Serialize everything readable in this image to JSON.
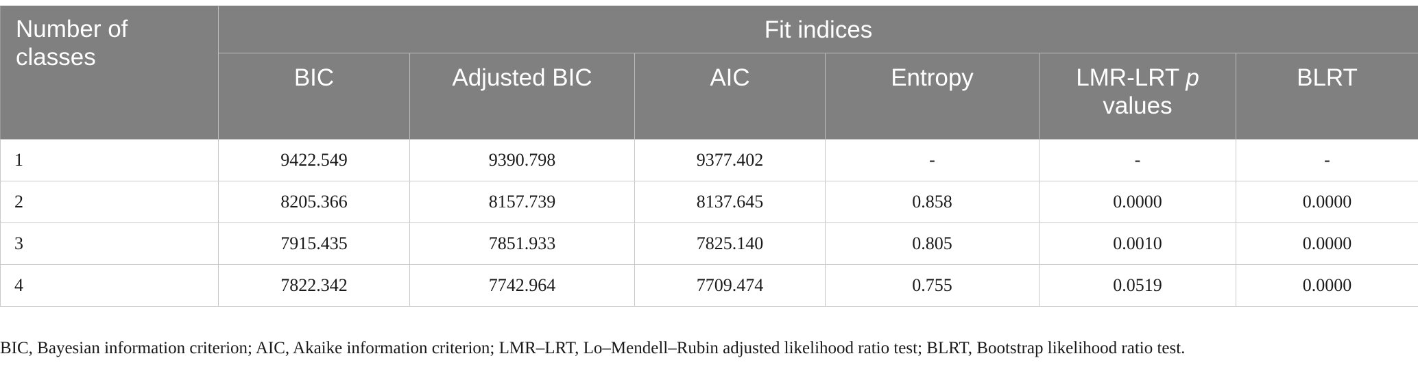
{
  "table": {
    "corner_header": "Number of classes",
    "group_header": "Fit indices",
    "columns": [
      {
        "label": "BIC"
      },
      {
        "label": "Adjusted BIC"
      },
      {
        "label": "AIC"
      },
      {
        "label": "Entropy"
      },
      {
        "label_main": "LMR-LRT ",
        "label_italic": "p",
        "label_tail": " values"
      },
      {
        "label": "BLRT"
      }
    ],
    "rows": [
      {
        "classes": "1",
        "bic": "9422.549",
        "adj_bic": "9390.798",
        "aic": "9377.402",
        "entropy": "-",
        "lmr": "-",
        "blrt": "-"
      },
      {
        "classes": "2",
        "bic": "8205.366",
        "adj_bic": "8157.739",
        "aic": "8137.645",
        "entropy": "0.858",
        "lmr": "0.0000",
        "blrt": "0.0000"
      },
      {
        "classes": "3",
        "bic": "7915.435",
        "adj_bic": "7851.933",
        "aic": "7825.140",
        "entropy": "0.805",
        "lmr": "0.0010",
        "blrt": "0.0000"
      },
      {
        "classes": "4",
        "bic": "7822.342",
        "adj_bic": "7742.964",
        "aic": "7709.474",
        "entropy": "0.755",
        "lmr": "0.0519",
        "blrt": "0.0000"
      }
    ]
  },
  "footnote": "BIC, Bayesian information criterion; AIC, Akaike information criterion; LMR–LRT, Lo–Mendell–Rubin adjusted likelihood ratio test; BLRT, Bootstrap likelihood ratio test."
}
